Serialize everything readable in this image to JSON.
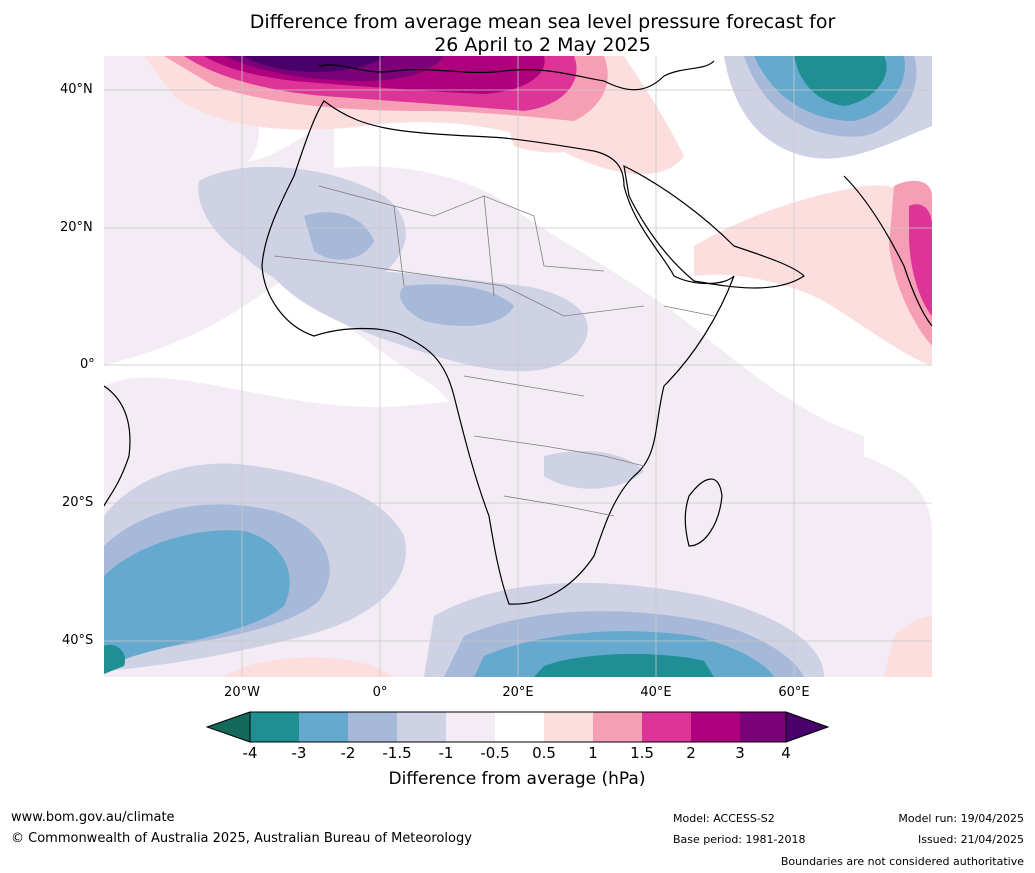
{
  "title": {
    "line1": "Difference from average mean sea level pressure forecast for",
    "line2": "26 April to 2 May 2025"
  },
  "map": {
    "lat_labels": [
      "40°N",
      "20°N",
      "0°",
      "20°S",
      "40°S"
    ],
    "lon_labels": [
      "20°W",
      "0°",
      "20°E",
      "40°E",
      "60°E"
    ],
    "colors": {
      "neg4": "#136a5b",
      "neg3": "#1f8f93",
      "neg2": "#65a9cf",
      "neg15": "#a7b9d8",
      "neg1": "#cfd1e5",
      "neg05": "#f3ecf4",
      "zero": "#ffffff",
      "pos05": "#fcdede",
      "pos1": "#f59eb5",
      "pos15": "#dd3497",
      "pos2": "#ae017e",
      "pos3": "#7a0177",
      "pos4": "#49006a",
      "coast": "#000000",
      "border": "#7f7f7f",
      "grid": "#bdbdbd"
    }
  },
  "colorbar": {
    "ticks": [
      "-4",
      "-3",
      "-2",
      "-1.5",
      "-1",
      "-0.5",
      "0.5",
      "1",
      "1.5",
      "2",
      "3",
      "4"
    ],
    "label": "Difference from average (hPa)"
  },
  "footer": {
    "website": "www.bom.gov.au/climate",
    "copyright": "© Commonwealth of Australia 2025, Australian Bureau of Meteorology",
    "model": "Model: ACCESS-S2",
    "base_period": "Base period: 1981-2018",
    "model_run": "Model run: 19/04/2025",
    "issued": "Issued: 21/04/2025",
    "disclaimer": "Boundaries are not considered authoritative"
  }
}
